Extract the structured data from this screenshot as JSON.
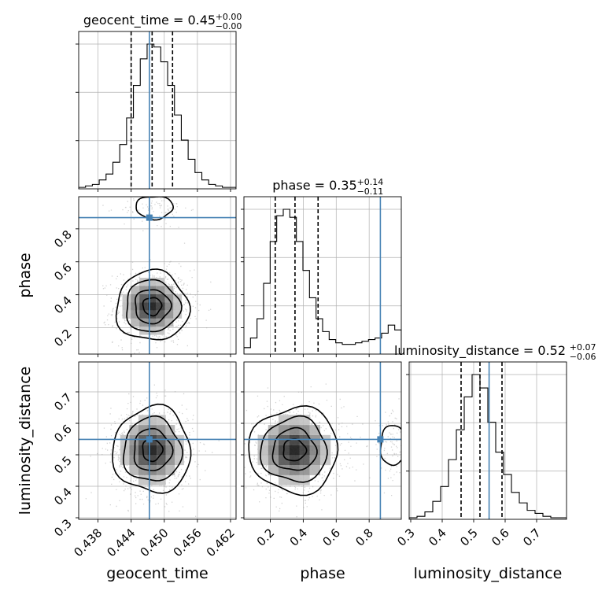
{
  "chart_data": {
    "type": "corner",
    "parameters": [
      "geocent_time",
      "phase",
      "luminosity_distance"
    ],
    "truths": {
      "geocent_time": 0.4473,
      "phase": 0.868,
      "luminosity_distance": 0.549
    },
    "colors": {
      "truth": "#4682b4",
      "hist": "#000000",
      "grid": "#b0b0b0",
      "scatter": "#9e9e9e"
    },
    "ranges": {
      "geocent_time": [
        0.4345,
        0.463
      ],
      "phase": [
        0.04,
        0.995
      ],
      "luminosity_distance": [
        0.295,
        0.795
      ]
    },
    "diagonal": [
      {
        "param": "geocent_time",
        "title_text": "geocent_time = 0.45",
        "title_sup": "+0.00",
        "title_sub": "−0.00",
        "quantiles": [
          0.444,
          0.4478,
          0.4515
        ],
        "bins": [
          0.4345,
          0.463
        ],
        "counts": [
          1,
          2,
          3,
          6,
          10,
          18,
          30,
          48,
          70,
          88,
          98,
          96,
          86,
          70,
          50,
          33,
          20,
          11,
          6,
          3,
          2,
          1,
          1
        ]
      },
      {
        "param": "phase",
        "title_text": "phase = 0.35",
        "title_sup": "+0.14",
        "title_sub": "−0.11",
        "quantiles": [
          0.23,
          0.35,
          0.49
        ],
        "bins": [
          0.04,
          0.995
        ],
        "counts": [
          4,
          10,
          22,
          44,
          70,
          86,
          90,
          85,
          70,
          52,
          35,
          22,
          14,
          9,
          7,
          6,
          6,
          7,
          8,
          9,
          10,
          13,
          18,
          15
        ]
      },
      {
        "param": "luminosity_distance",
        "title_text": "luminosity_distance = 0.52",
        "title_sup": "+0.07",
        "title_sub": "−0.06",
        "quantiles": [
          0.46,
          0.52,
          0.59
        ],
        "bins": [
          0.295,
          0.795
        ],
        "counts": [
          1,
          2,
          5,
          12,
          22,
          40,
          60,
          82,
          97,
          88,
          65,
          45,
          30,
          18,
          11,
          6,
          4,
          2,
          1,
          1
        ]
      }
    ],
    "panels_2d": [
      {
        "x": "geocent_time",
        "y": "phase",
        "modes": [
          {
            "mx": 0.4478,
            "my": 0.33,
            "sx": 0.0028,
            "sy": 0.09,
            "w": 1.0
          },
          {
            "mx": 0.4482,
            "my": 0.93,
            "sx": 0.0024,
            "sy": 0.05,
            "w": 0.12
          }
        ]
      },
      {
        "x": "geocent_time",
        "y": "luminosity_distance",
        "modes": [
          {
            "mx": 0.4478,
            "my": 0.515,
            "sx": 0.003,
            "sy": 0.058,
            "w": 1.0
          }
        ]
      },
      {
        "x": "phase",
        "y": "luminosity_distance",
        "modes": [
          {
            "mx": 0.345,
            "my": 0.515,
            "sx": 0.115,
            "sy": 0.058,
            "w": 1.0
          },
          {
            "mx": 0.95,
            "my": 0.53,
            "sx": 0.06,
            "sy": 0.045,
            "w": 0.14
          }
        ]
      }
    ],
    "ticks": {
      "geocent_time": [
        "0.438",
        "0.444",
        "0.450",
        "0.456",
        "0.462"
      ],
      "phase": [
        "0.2",
        "0.4",
        "0.6",
        "0.8"
      ],
      "luminosity_distance_y": [
        "0.3",
        "0.4",
        "0.5",
        "0.6",
        "0.7"
      ],
      "luminosity_distance_x": [
        "0.3",
        "0.4",
        "0.5",
        "0.6",
        "0.7"
      ]
    },
    "xlabels": [
      "geocent_time",
      "phase",
      "luminosity_distance"
    ],
    "ylabels": [
      "phase",
      "luminosity_distance"
    ]
  }
}
